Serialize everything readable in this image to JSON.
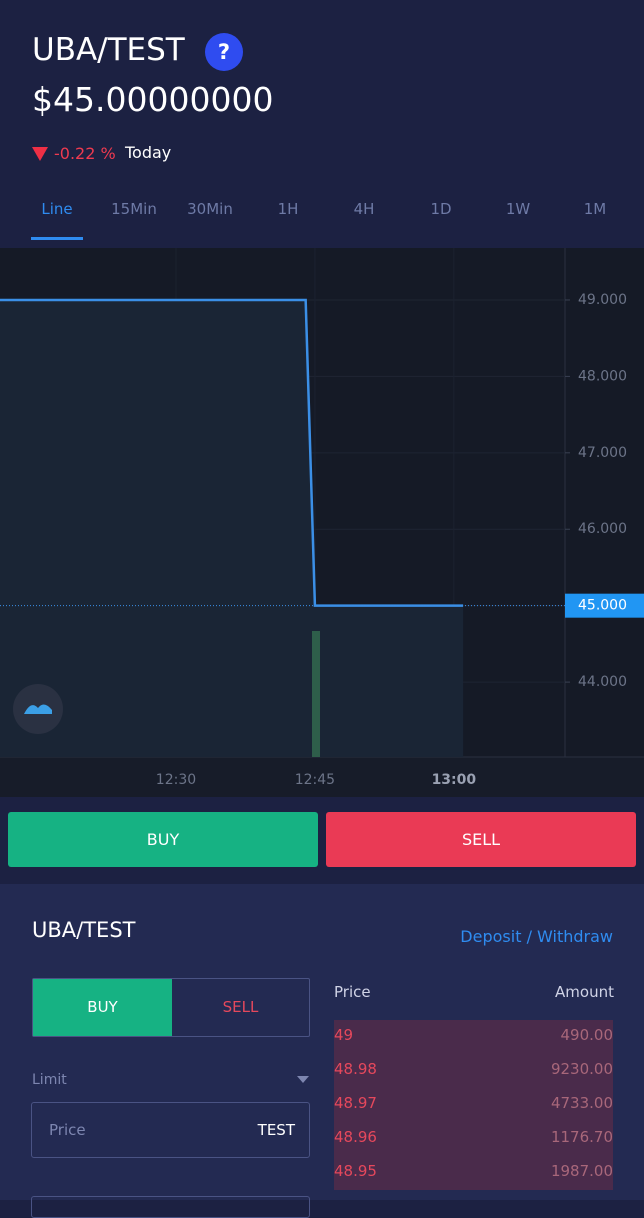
{
  "header": {
    "pair": "UBA/TEST",
    "help": "?",
    "price": "$45.00000000",
    "change": "-0.22 %",
    "period": "Today"
  },
  "tabs": [
    "Line",
    "15Min",
    "30Min",
    "1H",
    "4H",
    "1D",
    "1W",
    "1M"
  ],
  "chart": {
    "type": "line",
    "color": "#3b8fe6",
    "x": [
      "12:11",
      "12:44",
      "12:45",
      "13:01"
    ],
    "values": [
      49,
      49,
      45,
      45
    ],
    "xlim": [
      "12:11",
      "13:12"
    ],
    "xticks": [
      "12:30",
      "12:45",
      "13:00"
    ],
    "ylim": [
      43.02,
      49.68
    ],
    "yticks": [
      {
        "value": 44,
        "label": "44.000"
      },
      {
        "value": 45,
        "label": "45.000"
      },
      {
        "value": 46,
        "label": "46.000"
      },
      {
        "value": 47,
        "label": "47.000"
      },
      {
        "value": 48,
        "label": "48.000"
      },
      {
        "value": 49,
        "label": "49.000"
      }
    ],
    "current": {
      "value": 45,
      "label": "45.000"
    },
    "grid": true
  },
  "actions": {
    "buy": "BUY",
    "sell": "SELL"
  },
  "order": {
    "title": "UBA/TEST",
    "deposit": "Deposit",
    "separator": "/",
    "withdraw": "Withdraw",
    "buy": "BUY",
    "sell": "SELL",
    "type": "Limit",
    "price_placeholder": "Price",
    "price_unit": "TEST"
  },
  "book": {
    "headers": [
      "Price",
      "Amount"
    ],
    "rows": [
      [
        "49",
        "490.00"
      ],
      [
        "48.98",
        "9230.00"
      ],
      [
        "48.97",
        "4733.00"
      ],
      [
        "48.96",
        "1176.70"
      ],
      [
        "48.95",
        "1987.00"
      ]
    ]
  }
}
